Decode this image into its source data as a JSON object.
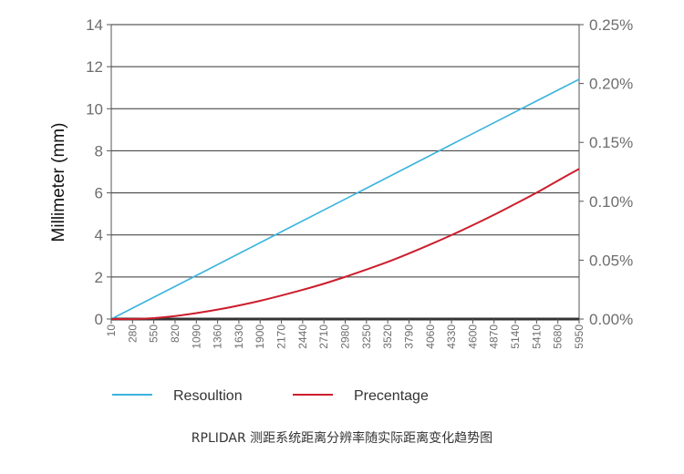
{
  "chart_data": {
    "type": "line",
    "caption": "RPLIDAR 测距系统距离分辨率随实际距离变化趋势图",
    "ylabel": "Millimeter (mm)",
    "y_left": {
      "ticks": [
        0,
        2,
        4,
        6,
        8,
        10,
        12,
        14
      ],
      "ylim": [
        0,
        14
      ]
    },
    "y_right": {
      "ticks": [
        "0.00%",
        "0.05%",
        "0.10%",
        "0.15%",
        "0.20%",
        "0.25%"
      ],
      "values": [
        0,
        0.05,
        0.1,
        0.15,
        0.2,
        0.25
      ],
      "ylim": [
        0,
        0.25
      ]
    },
    "x": {
      "ticks": [
        "10",
        "280",
        "550",
        "820",
        "1090",
        "1360",
        "1630",
        "1900",
        "2170",
        "2440",
        "2710",
        "2980",
        "3250",
        "3520",
        "3790",
        "4060",
        "4330",
        "4600",
        "4870",
        "5140",
        "5410",
        "5680",
        "5950"
      ],
      "xlim": [
        10,
        5950
      ]
    },
    "grid": "horizontal",
    "legend_position": "bottom",
    "series": [
      {
        "name": "Resoultion",
        "axis": "left",
        "color": "#3bb4dd",
        "x": [
          10,
          1090,
          2170,
          3250,
          4330,
          5410,
          5950
        ],
        "y": [
          0.0,
          2.07,
          4.15,
          6.22,
          8.3,
          10.37,
          11.4
        ]
      },
      {
        "name": "Precentage",
        "axis": "right",
        "color": "#cc1e2c",
        "x": [
          10,
          280,
          550,
          820,
          1090,
          1360,
          1630,
          1900,
          2170,
          2440,
          2710,
          2980,
          3250,
          3520,
          3790,
          4060,
          4330,
          4600,
          4870,
          5140,
          5410,
          5680,
          5950
        ],
        "y": [
          0.0,
          0.0,
          0.0008,
          0.0025,
          0.005,
          0.008,
          0.0115,
          0.0155,
          0.02,
          0.0248,
          0.03,
          0.0358,
          0.042,
          0.0485,
          0.0557,
          0.0633,
          0.0713,
          0.0797,
          0.0885,
          0.0978,
          0.1073,
          0.1175,
          0.1275
        ]
      }
    ]
  }
}
